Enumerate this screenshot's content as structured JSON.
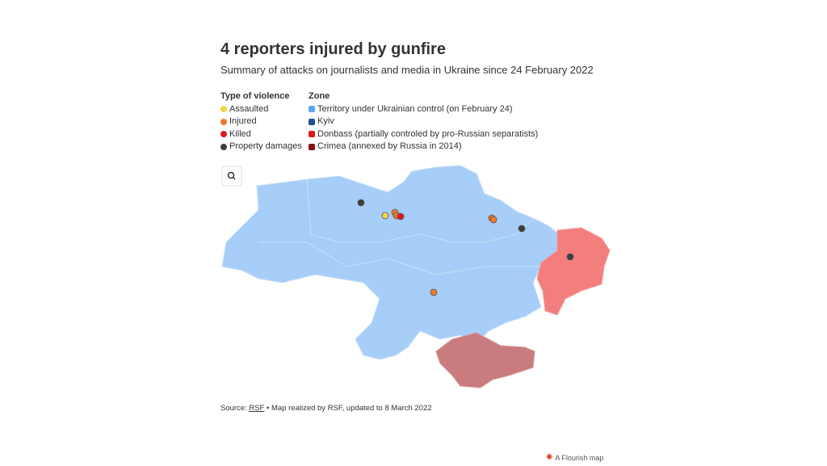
{
  "header": {
    "title": "4 reporters injured by gunfire",
    "subtitle": "Summary of attacks on journalists and media in Ukraine since 24 February 2022"
  },
  "legend": {
    "violence": {
      "title": "Type of violence",
      "items": [
        {
          "label": "Assaulted",
          "color": "#f5d547"
        },
        {
          "label": "Injured",
          "color": "#ee7a2b"
        },
        {
          "label": "Killed",
          "color": "#e0181b"
        },
        {
          "label": "Property damages",
          "color": "#3d3d3d"
        }
      ]
    },
    "zone": {
      "title": "Zone",
      "items": [
        {
          "label": "Territory under Ukrainian control (on February 24)",
          "color": "#5aa6f0"
        },
        {
          "label": "Kyiv",
          "color": "#1f4f9c"
        },
        {
          "label": "Donbass (partially controled by pro-Russian separatists)",
          "color": "#e0181b"
        },
        {
          "label": "Crimea (annexed by Russia in 2014)",
          "color": "#8b1015"
        }
      ]
    }
  },
  "footer": {
    "source_label": "Source:",
    "source_link": "RSF",
    "source_note": "• Map realized by RSF, updated to 8 March 2022"
  },
  "credit": "A Flourish map"
}
